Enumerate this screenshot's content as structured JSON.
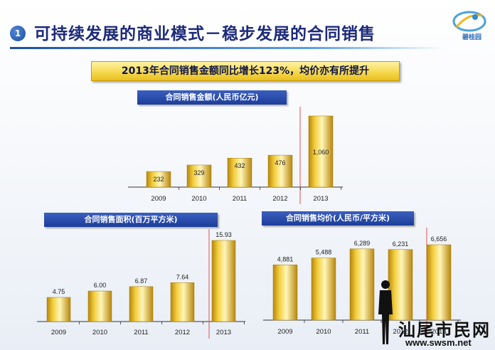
{
  "header": {
    "step_number": "1",
    "title": "可持续发展的商业模式－稳步发展的合同销售",
    "logo_text": "碧桂园"
  },
  "banner": {
    "text": "2013年合同销售金额同比增长123%，均价亦有所提升"
  },
  "watermark": {
    "text": "汕尾市民网",
    "url": "www.swsm.net"
  },
  "chart_data": [
    {
      "type": "bar",
      "title": "合同销售金额(人民币亿元)",
      "categories": [
        "2009",
        "2010",
        "2011",
        "2012",
        "2013"
      ],
      "values": [
        232,
        329,
        432,
        476,
        1060
      ],
      "value_labels": [
        "232",
        "329",
        "432",
        "476",
        "1,060"
      ],
      "label_position": "inside",
      "divider_before_index": 4,
      "colors": {
        "bar_light": "#fff6b8",
        "bar_mid": "#f2cd3c",
        "bar_dark": "#b8860b",
        "divider": "#e05050"
      }
    },
    {
      "type": "bar",
      "title": "合同销售面积(百万平方米)",
      "categories": [
        "2009",
        "2010",
        "2011",
        "2012",
        "2013"
      ],
      "values": [
        4.75,
        6.0,
        6.87,
        7.64,
        15.93
      ],
      "value_labels": [
        "4.75",
        "6.00",
        "6.87",
        "7.64",
        "15.93"
      ],
      "label_position": "above",
      "divider_before_index": 4,
      "colors": {
        "bar_light": "#fff6b8",
        "bar_mid": "#f2cd3c",
        "bar_dark": "#b8860b",
        "divider": "#e05050"
      }
    },
    {
      "type": "bar",
      "title": "合同销售均价(人民币/平方米)",
      "categories": [
        "2009",
        "2010",
        "2011",
        "2012",
        "2013"
      ],
      "values": [
        4881,
        5488,
        6289,
        6231,
        6656
      ],
      "value_labels": [
        "4,881",
        "5,488",
        "6,289",
        "6,231",
        "6,656"
      ],
      "label_position": "above",
      "divider_before_index": 4,
      "colors": {
        "bar_light": "#fff6b8",
        "bar_mid": "#f2cd3c",
        "bar_dark": "#b8860b",
        "divider": "#e05050"
      }
    }
  ]
}
